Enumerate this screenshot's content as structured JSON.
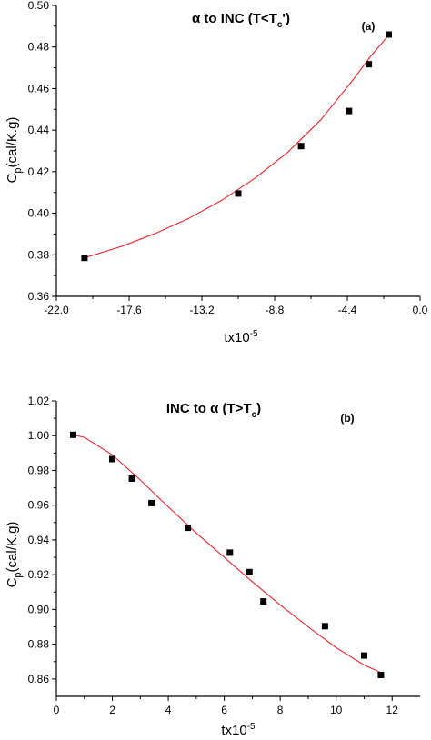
{
  "chart_data": [
    {
      "type": "scatter",
      "panel_label": "(a)",
      "title_parts": {
        "lead": "α to INC (T<T",
        "sub": "c",
        "tail": "')"
      },
      "ylabel_parts": {
        "main": "C",
        "sub": "p",
        "tail": "(cal/K.g)"
      },
      "xlabel_parts": {
        "main": "tx10",
        "sup": "-5"
      },
      "xlim": [
        -22.0,
        0.0
      ],
      "ylim": [
        0.36,
        0.5
      ],
      "xticks": [
        -22.0,
        -17.6,
        -13.2,
        -8.8,
        -4.4,
        0.0
      ],
      "xtick_labels": [
        "-22.0",
        "-17.6",
        "-13.2",
        "-8.8",
        "-4.4",
        "0.0"
      ],
      "yticks": [
        0.36,
        0.38,
        0.4,
        0.42,
        0.44,
        0.46,
        0.48,
        0.5
      ],
      "ytick_labels": [
        "0.36",
        "0.38",
        "0.40",
        "0.42",
        "0.44",
        "0.46",
        "0.48",
        "0.50"
      ],
      "series": [
        {
          "x": [
            -20.3,
            -11.0,
            -7.2,
            -4.3,
            -3.1,
            -1.9
          ],
          "y": [
            0.3785,
            0.4095,
            0.4323,
            0.4492,
            0.4717,
            0.486
          ],
          "marker": "square",
          "color": "#000000"
        }
      ],
      "fit": {
        "color": "#e8262d",
        "x": [
          -20.3,
          -18.0,
          -16.0,
          -14.0,
          -12.0,
          -10.0,
          -8.0,
          -6.0,
          -4.0,
          -3.0,
          -1.9
        ],
        "y": [
          0.3785,
          0.3842,
          0.3903,
          0.3975,
          0.4062,
          0.4168,
          0.4294,
          0.445,
          0.4648,
          0.4755,
          0.4857
        ]
      }
    },
    {
      "type": "scatter",
      "panel_label": "(b)",
      "title_parts": {
        "lead": "INC to α (T>T",
        "sub": "c",
        "tail": ")"
      },
      "ylabel_parts": {
        "main": "C",
        "sub": "p",
        "tail": "(cal/K.g)"
      },
      "xlabel_parts": {
        "main": "tx10",
        "sup": "-5"
      },
      "xlim": [
        0,
        13
      ],
      "ylim": [
        0.85,
        1.02
      ],
      "xticks": [
        0,
        2,
        4,
        6,
        8,
        10,
        12
      ],
      "xtick_labels": [
        "0",
        "2",
        "4",
        "6",
        "8",
        "10",
        "12"
      ],
      "yticks": [
        0.86,
        0.88,
        0.9,
        0.92,
        0.94,
        0.96,
        0.98,
        1.0,
        1.02
      ],
      "ytick_labels": [
        "0.86",
        "0.88",
        "0.90",
        "0.92",
        "0.94",
        "0.96",
        "0.98",
        "1.00",
        "1.02"
      ],
      "series": [
        {
          "x": [
            0.6,
            2.0,
            2.7,
            3.4,
            4.7,
            6.2,
            6.9,
            7.4,
            9.6,
            11.0,
            11.6
          ],
          "y": [
            1.0005,
            0.9865,
            0.9753,
            0.9612,
            0.947,
            0.9327,
            0.9215,
            0.9046,
            0.8904,
            0.8735,
            0.8623
          ],
          "marker": "square",
          "color": "#000000"
        }
      ],
      "fit": {
        "color": "#e8262d",
        "x": [
          0.6,
          1.0,
          2.0,
          3.0,
          4.0,
          5.0,
          6.0,
          7.0,
          8.0,
          9.0,
          10.0,
          11.0,
          11.7
        ],
        "y": [
          1.0005,
          0.999,
          0.989,
          0.9745,
          0.959,
          0.944,
          0.93,
          0.916,
          0.9025,
          0.89,
          0.878,
          0.868,
          0.863
        ]
      }
    }
  ]
}
